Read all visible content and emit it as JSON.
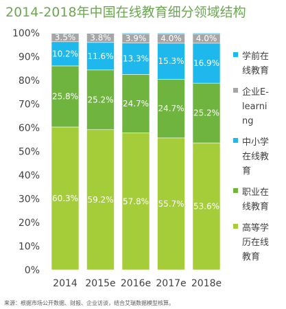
{
  "chart_data": {
    "type": "bar",
    "stacked": true,
    "title": "2014-2018年中国在线教育细分领域结构",
    "categories": [
      "2014",
      "2015e",
      "2016e",
      "2017e",
      "2018e"
    ],
    "ylim": [
      0,
      100
    ],
    "yticks": [
      "0%",
      "10%",
      "20%",
      "30%",
      "40%",
      "50%",
      "60%",
      "70%",
      "80%",
      "90%",
      "100%"
    ],
    "series": [
      {
        "name": "高等学历在线教育",
        "legend_lines": [
          "高等学",
          "历在线",
          "教育"
        ],
        "color": "#a5cd39",
        "values": [
          60.3,
          59.2,
          57.8,
          55.7,
          53.6
        ],
        "labels": [
          "60.3%",
          "59.2%",
          "57.8%",
          "55.7%",
          "53.6%"
        ]
      },
      {
        "name": "职业在线教育",
        "legend_lines": [
          "职业在",
          "线教育"
        ],
        "color": "#6fb43f",
        "values": [
          25.8,
          25.2,
          24.7,
          24.7,
          25.2
        ],
        "labels": [
          "25.8%",
          "25.2%",
          "24.7%",
          "24.7%",
          "25.2%"
        ]
      },
      {
        "name": "中小学在线教育",
        "legend_lines": [
          "中小学",
          "在线教",
          "育"
        ],
        "color": "#1fb8ec",
        "values": [
          10.2,
          11.6,
          13.3,
          15.3,
          16.9
        ],
        "labels": [
          "10.2%",
          "11.6%",
          "13.3%",
          "15.3%",
          "16.9%"
        ]
      },
      {
        "name": "企业E-learning",
        "legend_lines": [
          "企业E-",
          "learni",
          "ng"
        ],
        "color": "#a6a6a6",
        "values": [
          3.5,
          3.8,
          3.9,
          4.0,
          4.0
        ],
        "labels": [
          "3.5%",
          "3.8%",
          "3.9%",
          "4.0%",
          "4.0%"
        ]
      },
      {
        "name": "学前在线教育",
        "legend_lines": [
          "学前在",
          "线教育"
        ],
        "color": "#1fb8ec",
        "values": [
          0.2,
          0.2,
          0.3,
          0.3,
          0.3
        ],
        "labels": []
      }
    ],
    "legend_order": [
      4,
      3,
      2,
      1,
      0
    ],
    "legend_position": "right",
    "grid": false
  },
  "source_note": "来源：根据市场公开数据、财报、企业访谈，结合艾瑞数据模型核算。"
}
